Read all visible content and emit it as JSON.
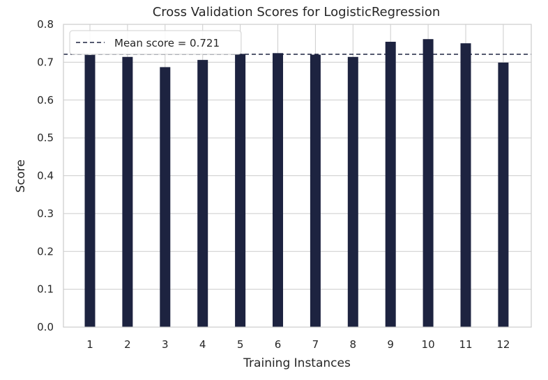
{
  "chart_data": {
    "type": "bar",
    "title": "Cross Validation Scores for LogisticRegression",
    "xlabel": "Training Instances",
    "ylabel": "Score",
    "categories": [
      "1",
      "2",
      "3",
      "4",
      "5",
      "6",
      "7",
      "8",
      "9",
      "10",
      "11",
      "12"
    ],
    "values": [
      0.719,
      0.714,
      0.687,
      0.706,
      0.722,
      0.724,
      0.72,
      0.714,
      0.754,
      0.761,
      0.75,
      0.699
    ],
    "ylim": [
      0,
      0.8
    ],
    "yticks": [
      "0.0",
      "0.1",
      "0.2",
      "0.3",
      "0.4",
      "0.5",
      "0.6",
      "0.7",
      "0.8"
    ],
    "mean": 0.721,
    "legend": {
      "label": "Mean score = 0.721",
      "position": "top-left"
    },
    "grid": true,
    "bar_color": "#1d2340",
    "mean_line_color": "#1d2340",
    "grid_color": "#cccccc"
  }
}
